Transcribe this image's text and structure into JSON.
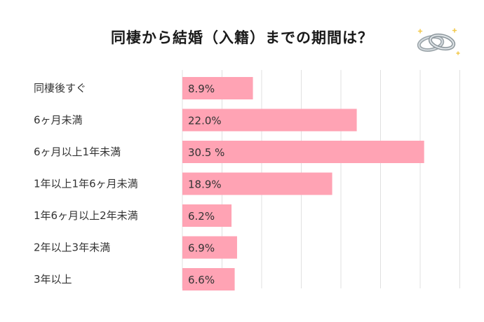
{
  "title": "同棲から結婚（入籍）までの期間は？",
  "colors": {
    "bar": "#ffa3b4",
    "grid": "#e0e0e0",
    "text": "#333333"
  },
  "icon": "wedding-rings-icon",
  "chart_data": {
    "type": "bar",
    "orientation": "horizontal",
    "categories": [
      "同棲後すぐ",
      "6ヶ月未満",
      "6ヶ月以上1年未満",
      "1年以上1年6ヶ月未満",
      "1年6ヶ月以上2年未満",
      "2年以上3年未満",
      "3年以上"
    ],
    "values": [
      8.9,
      22.0,
      30.5,
      18.9,
      6.2,
      6.9,
      6.6
    ],
    "value_labels": [
      "8.9%",
      "22.0%",
      "30.5 %",
      "18.9%",
      "6.2%",
      "6.9%",
      "6.6%"
    ],
    "title": "同棲から結婚（入籍）までの期間は？",
    "xlim": [
      0,
      35
    ],
    "grid": true,
    "legend": "none"
  }
}
